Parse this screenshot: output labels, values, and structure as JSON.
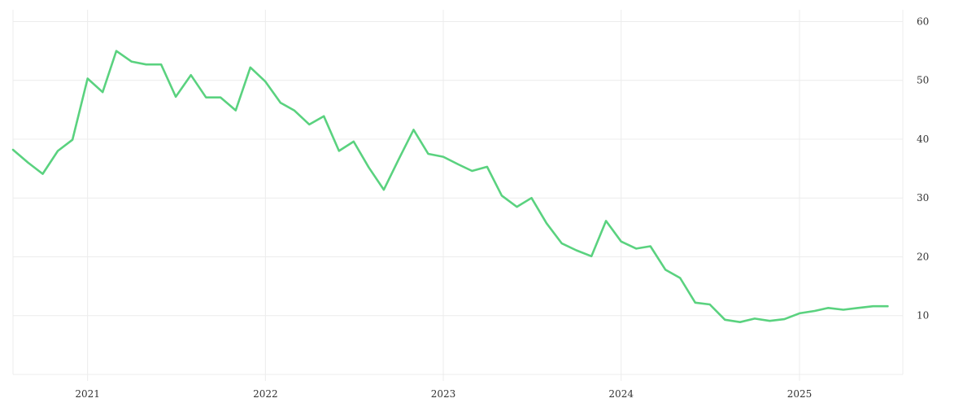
{
  "chart_data": {
    "type": "line",
    "title": "",
    "xlabel": "",
    "ylabel": "",
    "ylim": [
      0,
      62
    ],
    "xlim": [
      "2020-08-01",
      "2025-08-01"
    ],
    "grid": true,
    "y_axis_position": "right",
    "y_ticks": [
      10,
      20,
      30,
      40,
      50,
      60
    ],
    "x_ticks": [
      {
        "label": "2021",
        "date": "2021-01-01"
      },
      {
        "label": "2022",
        "date": "2022-01-01"
      },
      {
        "label": "2023",
        "date": "2023-01-01"
      },
      {
        "label": "2024",
        "date": "2024-01-01"
      },
      {
        "label": "2025",
        "date": "2025-01-01"
      }
    ],
    "series": [
      {
        "color": "#5ad27f",
        "points": [
          [
            "2020-08-01",
            38.2
          ],
          [
            "2020-09-01",
            36.0
          ],
          [
            "2020-10-01",
            34.1
          ],
          [
            "2020-11-01",
            38.0
          ],
          [
            "2020-12-01",
            39.9
          ],
          [
            "2021-01-01",
            50.3
          ],
          [
            "2021-02-01",
            48.0
          ],
          [
            "2021-03-01",
            55.0
          ],
          [
            "2021-04-01",
            53.2
          ],
          [
            "2021-05-01",
            52.7
          ],
          [
            "2021-06-01",
            52.7
          ],
          [
            "2021-07-01",
            47.2
          ],
          [
            "2021-08-01",
            50.9
          ],
          [
            "2021-09-01",
            47.1
          ],
          [
            "2021-10-01",
            47.1
          ],
          [
            "2021-11-01",
            44.9
          ],
          [
            "2021-12-01",
            52.2
          ],
          [
            "2022-01-01",
            49.8
          ],
          [
            "2022-02-01",
            46.2
          ],
          [
            "2022-03-01",
            44.9
          ],
          [
            "2022-04-01",
            42.5
          ],
          [
            "2022-05-01",
            43.9
          ],
          [
            "2022-06-01",
            38.0
          ],
          [
            "2022-07-01",
            39.6
          ],
          [
            "2022-08-01",
            35.2
          ],
          [
            "2022-09-01",
            31.4
          ],
          [
            "2022-10-01",
            36.5
          ],
          [
            "2022-11-01",
            41.6
          ],
          [
            "2022-12-01",
            37.5
          ],
          [
            "2023-01-01",
            37.0
          ],
          [
            "2023-02-01",
            35.7
          ],
          [
            "2023-03-01",
            34.6
          ],
          [
            "2023-04-01",
            35.3
          ],
          [
            "2023-05-01",
            30.4
          ],
          [
            "2023-06-01",
            28.5
          ],
          [
            "2023-07-01",
            30.0
          ],
          [
            "2023-08-01",
            25.7
          ],
          [
            "2023-09-01",
            22.3
          ],
          [
            "2023-10-01",
            21.1
          ],
          [
            "2023-11-01",
            20.1
          ],
          [
            "2023-12-01",
            26.1
          ],
          [
            "2024-01-01",
            22.6
          ],
          [
            "2024-02-01",
            21.4
          ],
          [
            "2024-03-01",
            21.8
          ],
          [
            "2024-04-01",
            17.8
          ],
          [
            "2024-05-01",
            16.4
          ],
          [
            "2024-06-01",
            12.2
          ],
          [
            "2024-07-01",
            11.9
          ],
          [
            "2024-08-01",
            9.3
          ],
          [
            "2024-09-01",
            8.9
          ],
          [
            "2024-10-01",
            9.5
          ],
          [
            "2024-11-01",
            9.1
          ],
          [
            "2024-12-01",
            9.4
          ],
          [
            "2025-01-01",
            10.4
          ],
          [
            "2025-02-01",
            10.8
          ],
          [
            "2025-03-01",
            11.3
          ],
          [
            "2025-04-01",
            11.0
          ],
          [
            "2025-05-01",
            11.3
          ],
          [
            "2025-06-01",
            11.6
          ],
          [
            "2025-07-01",
            11.6
          ]
        ]
      }
    ]
  }
}
